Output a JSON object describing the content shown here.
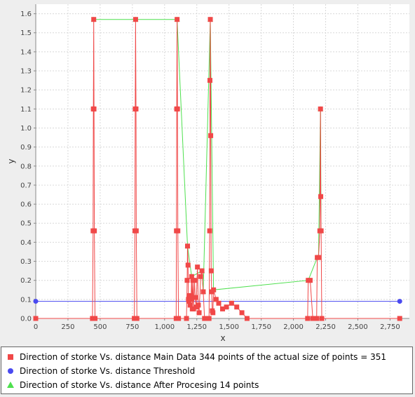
{
  "chart_data": {
    "type": "line",
    "xlabel": "x",
    "ylabel": "y",
    "xlim": [
      0,
      2900
    ],
    "ylim": [
      0,
      1.65
    ],
    "x_ticks": [
      0,
      250,
      500,
      750,
      1000,
      1250,
      1500,
      1750,
      2000,
      2250,
      2500,
      2750
    ],
    "x_tick_labels": [
      "0",
      "250",
      "500",
      "750",
      "1,000",
      "1,250",
      "1,500",
      "1,750",
      "2,000",
      "2,250",
      "2,500",
      "2,750"
    ],
    "y_ticks": [
      0,
      0.1,
      0.2,
      0.3,
      0.4,
      0.5,
      0.6,
      0.7,
      0.8,
      0.9,
      1.0,
      1.1,
      1.2,
      1.3,
      1.4,
      1.5,
      1.6
    ],
    "y_tick_labels": [
      "0.0",
      "0.1",
      "0.2",
      "0.3",
      "0.4",
      "0.5",
      "0.6",
      "0.7",
      "0.8",
      "0.9",
      "1.0",
      "1.1",
      "1.2",
      "1.3",
      "1.4",
      "1.5",
      "1.6"
    ],
    "grid": true,
    "legend_position": "bottom",
    "series": [
      {
        "name": "Direction of storke Vs. distance Main Data  344  points of the actual size of points = 351",
        "color": "#f04848",
        "marker": "square",
        "points": [
          [
            0,
            0
          ],
          [
            440,
            0
          ],
          [
            445,
            0.46
          ],
          [
            447,
            1.1
          ],
          [
            450,
            1.57
          ],
          [
            452,
            1.1
          ],
          [
            455,
            0.46
          ],
          [
            460,
            0
          ],
          [
            765,
            0
          ],
          [
            770,
            0.46
          ],
          [
            772,
            1.1
          ],
          [
            775,
            1.57
          ],
          [
            778,
            1.1
          ],
          [
            780,
            0.46
          ],
          [
            785,
            0
          ],
          [
            1090,
            0
          ],
          [
            1092,
            0.46
          ],
          [
            1094,
            1.1
          ],
          [
            1097,
            1.57
          ],
          [
            1100,
            1.1
          ],
          [
            1103,
            0.46
          ],
          [
            1108,
            0
          ],
          [
            1170,
            0
          ],
          [
            1175,
            0.2
          ],
          [
            1178,
            0.38
          ],
          [
            1182,
            0.28
          ],
          [
            1185,
            0.1
          ],
          [
            1188,
            0.09
          ],
          [
            1192,
            0.12
          ],
          [
            1198,
            0.07
          ],
          [
            1205,
            0.1
          ],
          [
            1210,
            0.22
          ],
          [
            1215,
            0.05
          ],
          [
            1220,
            0.2
          ],
          [
            1225,
            0.05
          ],
          [
            1232,
            0.2
          ],
          [
            1238,
            0.11
          ],
          [
            1245,
            0.06
          ],
          [
            1255,
            0.27
          ],
          [
            1262,
            0.07
          ],
          [
            1268,
            0.03
          ],
          [
            1280,
            0.22
          ],
          [
            1290,
            0.25
          ],
          [
            1300,
            0.14
          ],
          [
            1310,
            0
          ],
          [
            1345,
            0
          ],
          [
            1350,
            0.46
          ],
          [
            1352,
            1.25
          ],
          [
            1355,
            1.57
          ],
          [
            1358,
            0.96
          ],
          [
            1362,
            0.25
          ],
          [
            1365,
            0.14
          ],
          [
            1370,
            0.04
          ],
          [
            1375,
            0.03
          ],
          [
            1380,
            0.15
          ],
          [
            1400,
            0.1
          ],
          [
            1420,
            0.08
          ],
          [
            1450,
            0.05
          ],
          [
            1480,
            0.06
          ],
          [
            1520,
            0.08
          ],
          [
            1560,
            0.06
          ],
          [
            1600,
            0.03
          ],
          [
            1640,
            0
          ],
          [
            2110,
            0
          ],
          [
            2115,
            0.2
          ],
          [
            2130,
            0.2
          ],
          [
            2150,
            0
          ],
          [
            2180,
            0
          ],
          [
            2185,
            0.32
          ],
          [
            2195,
            0.32
          ],
          [
            2205,
            0.46
          ],
          [
            2210,
            1.1
          ],
          [
            2212,
            0.64
          ],
          [
            2215,
            0.46
          ],
          [
            2220,
            0
          ],
          [
            2825,
            0
          ]
        ]
      },
      {
        "name": "Direction of storke Vs. distance  Threshold",
        "color": "#4a4af0",
        "marker": "circle",
        "points": [
          [
            0,
            0.09
          ],
          [
            2825,
            0.09
          ]
        ]
      },
      {
        "name": "Direction of storke Vs. distance  After Procesing  14  points",
        "color": "#4ee04e",
        "marker": "triangle",
        "points": [
          [
            450,
            1.57
          ],
          [
            775,
            1.57
          ],
          [
            1097,
            1.57
          ],
          [
            1178,
            0.38
          ],
          [
            1210,
            0.22
          ],
          [
            1290,
            0.25
          ],
          [
            1300,
            0.14
          ],
          [
            1355,
            1.57
          ],
          [
            1380,
            0.15
          ],
          [
            2115,
            0.2
          ],
          [
            2185,
            0.32
          ],
          [
            2195,
            0.32
          ],
          [
            2210,
            1.1
          ],
          [
            2215,
            0.46
          ]
        ]
      }
    ]
  }
}
